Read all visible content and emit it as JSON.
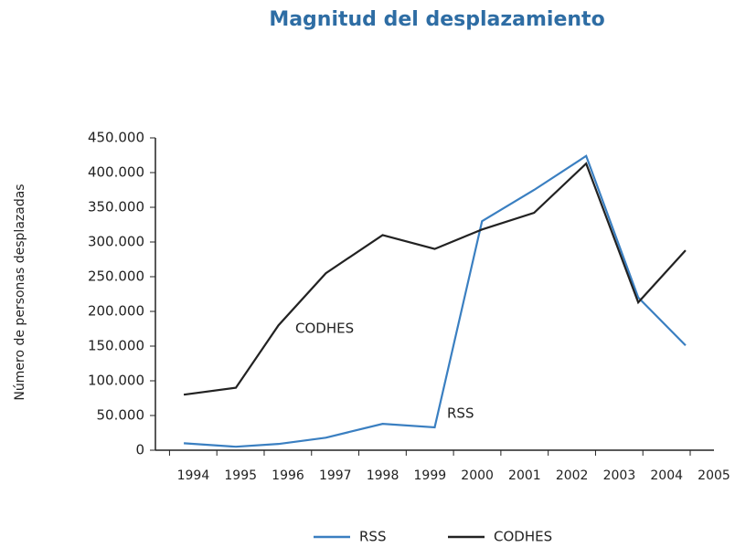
{
  "chart_data": {
    "type": "line",
    "title": "Magnitud del desplazamiento",
    "y_label": "Número de personas desplazadas",
    "x": [
      1993.8,
      1994.9,
      1995.8,
      1996.8,
      1998,
      1999.1,
      2000.1,
      2001.2,
      2002.3,
      2003.4,
      2004.4
    ],
    "series": [
      {
        "name": "RSS",
        "color": "#3a7fc1",
        "values": [
          10000,
          5000,
          9000,
          18000,
          38000,
          33000,
          330000,
          375000,
          424000,
          220000,
          151000
        ]
      },
      {
        "name": "CODHES",
        "color": "#222222",
        "values": [
          80000,
          90000,
          180000,
          255000,
          310000,
          290000,
          318000,
          342000,
          413000,
          213000,
          288000
        ]
      }
    ],
    "xlim": [
      1993.2,
      2005
    ],
    "xticks": [
      1994,
      1995,
      1996,
      1997,
      1998,
      1999,
      2000,
      2001,
      2002,
      2003,
      2004,
      2005
    ],
    "ylim": [
      0,
      450000
    ],
    "yticks": [
      0,
      {
        "value": 50000,
        "label": "50.000"
      },
      {
        "value": 100000,
        "label": "100.000"
      },
      {
        "value": 150000,
        "label": "150.000"
      },
      {
        "value": 200000,
        "label": "200.000"
      },
      {
        "value": 250000,
        "label": "250.000"
      },
      {
        "value": 300000,
        "label": "300.000"
      },
      {
        "value": 350000,
        "label": "350.000"
      },
      {
        "value": 400000,
        "label": "400.000"
      },
      {
        "value": 450000,
        "label": "450.000"
      }
    ],
    "annotations": [
      "CODHES",
      "RSS"
    ],
    "legend": "bottom"
  }
}
